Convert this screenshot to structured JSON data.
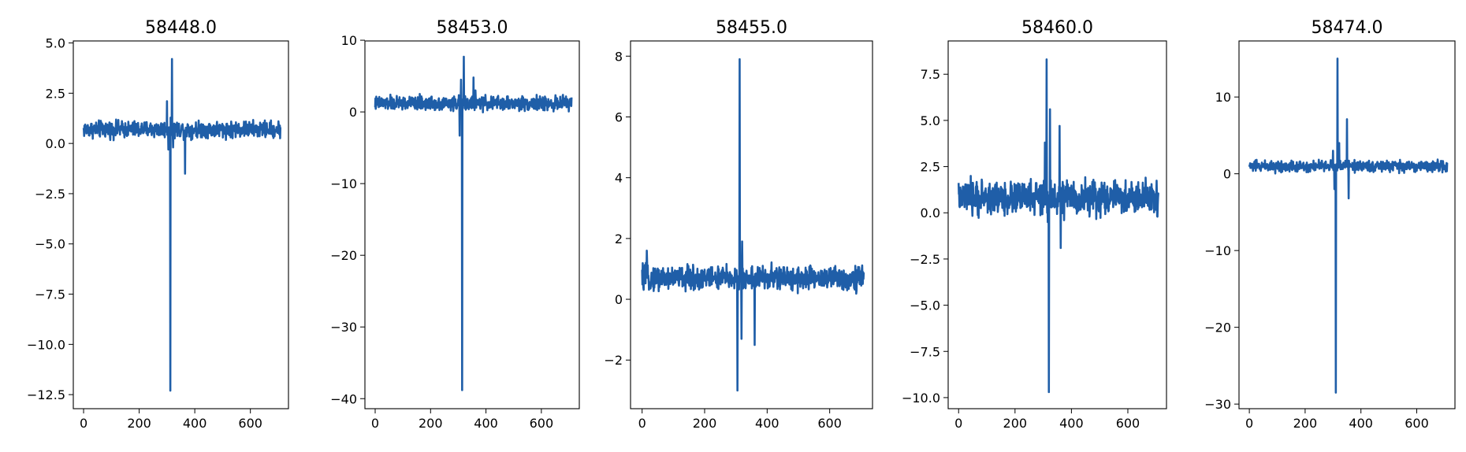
{
  "chart_data": [
    {
      "type": "line",
      "title": "58448.0",
      "xlim": [
        -37,
        737
      ],
      "ylim": [
        -13.2,
        5.1
      ],
      "xticks": [
        0,
        200,
        400,
        600
      ],
      "xtick_labels": [
        "0",
        "200",
        "400",
        "600"
      ],
      "yticks": [
        5.0,
        2.5,
        0.0,
        -2.5,
        -5.0,
        -7.5,
        -10.0,
        -12.5
      ],
      "ytick_labels": [
        "5.0",
        "2.5",
        "0.0",
        "−2.5",
        "−5.0",
        "−7.5",
        "−10.0",
        "−12.5"
      ],
      "series": [
        {
          "color": "#1f5ea8",
          "points": 710,
          "baseline": 0.7,
          "noise": 0.25,
          "spikes": [
            [
              300,
              2.1
            ],
            [
              305,
              -0.3
            ],
            [
              312,
              -12.3
            ],
            [
              318,
              4.2
            ],
            [
              322,
              -0.2
            ],
            [
              365,
              -1.5
            ]
          ]
        }
      ]
    },
    {
      "type": "line",
      "title": "58453.0",
      "xlim": [
        -37,
        737
      ],
      "ylim": [
        -41.4,
        9.9
      ],
      "xticks": [
        0,
        200,
        400,
        600
      ],
      "xtick_labels": [
        "0",
        "200",
        "400",
        "600"
      ],
      "yticks": [
        10,
        0,
        -10,
        -20,
        -30,
        -40
      ],
      "ytick_labels": [
        "10",
        "0",
        "−10",
        "−20",
        "−30",
        "−40"
      ],
      "series": [
        {
          "color": "#1f5ea8",
          "points": 710,
          "baseline": 1.2,
          "noise": 0.6,
          "spikes": [
            [
              305,
              -3.3
            ],
            [
              310,
              4.5
            ],
            [
              314,
              -38.8
            ],
            [
              320,
              7.7
            ],
            [
              355,
              4.8
            ],
            [
              362,
              3.0
            ]
          ]
        }
      ]
    },
    {
      "type": "line",
      "title": "58455.0",
      "xlim": [
        -37,
        737
      ],
      "ylim": [
        -3.6,
        8.5
      ],
      "xticks": [
        0,
        200,
        400,
        600
      ],
      "xtick_labels": [
        "0",
        "200",
        "400",
        "600"
      ],
      "yticks": [
        8,
        6,
        4,
        2,
        0,
        -2
      ],
      "ytick_labels": [
        "8",
        "6",
        "4",
        "2",
        "0",
        "−2"
      ],
      "series": [
        {
          "color": "#1f5ea8",
          "points": 710,
          "baseline": 0.7,
          "noise": 0.25,
          "spikes": [
            [
              15,
              1.6
            ],
            [
              305,
              -3.0
            ],
            [
              312,
              7.9
            ],
            [
              318,
              -1.3
            ],
            [
              320,
              1.9
            ],
            [
              360,
              -1.5
            ]
          ]
        }
      ]
    },
    {
      "type": "line",
      "title": "58460.0",
      "xlim": [
        -37,
        737
      ],
      "ylim": [
        -10.6,
        9.3
      ],
      "xticks": [
        0,
        200,
        400,
        600
      ],
      "xtick_labels": [
        "0",
        "200",
        "400",
        "600"
      ],
      "yticks": [
        7.5,
        5.0,
        2.5,
        0.0,
        -2.5,
        -5.0,
        -7.5,
        -10.0
      ],
      "ytick_labels": [
        "7.5",
        "5.0",
        "2.5",
        "0.0",
        "−2.5",
        "−5.0",
        "−7.5",
        "−10.0"
      ],
      "series": [
        {
          "color": "#1f5ea8",
          "points": 710,
          "baseline": 0.8,
          "noise": 0.55,
          "spikes": [
            [
              306,
              3.8
            ],
            [
              312,
              8.3
            ],
            [
              316,
              -0.5
            ],
            [
              320,
              -9.7
            ],
            [
              324,
              5.6
            ],
            [
              358,
              4.7
            ],
            [
              362,
              -1.9
            ]
          ]
        }
      ]
    },
    {
      "type": "line",
      "title": "58474.0",
      "xlim": [
        -37,
        737
      ],
      "ylim": [
        -30.6,
        17.3
      ],
      "xticks": [
        0,
        200,
        400,
        600
      ],
      "xtick_labels": [
        "0",
        "200",
        "400",
        "600"
      ],
      "yticks": [
        10,
        0,
        -10,
        -20,
        -30
      ],
      "ytick_labels": [
        "10",
        "0",
        "−10",
        "−20",
        "−30"
      ],
      "series": [
        {
          "color": "#1f5ea8",
          "points": 710,
          "baseline": 1.0,
          "noise": 0.45,
          "spikes": [
            [
              300,
              3.0
            ],
            [
              305,
              -2.0
            ],
            [
              310,
              -28.5
            ],
            [
              316,
              15.0
            ],
            [
              322,
              4.0
            ],
            [
              350,
              7.1
            ],
            [
              356,
              -3.2
            ]
          ]
        }
      ]
    }
  ]
}
